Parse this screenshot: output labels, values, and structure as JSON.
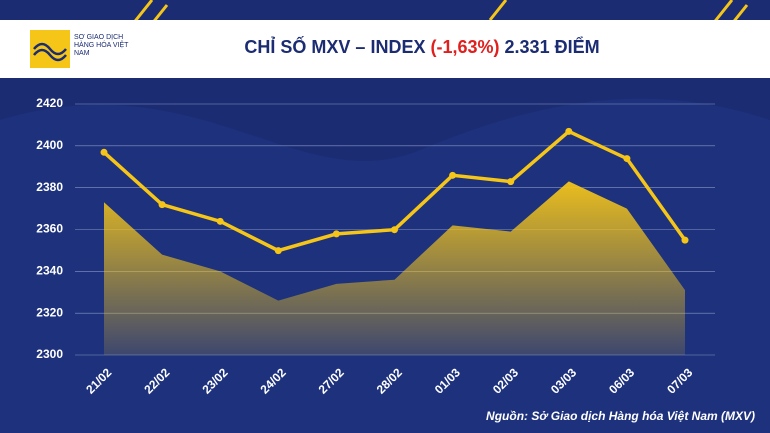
{
  "brand": "SỞ GIAO DỊCH HÀNG HÓA VIỆT NAM",
  "chart_data": {
    "type": "area",
    "title": "CHỈ SỐ MXV – INDEX",
    "change": "(-1,63%)",
    "last": "2.331 ĐIỂM",
    "source": "Nguồn: Sở Giao dịch Hàng hóa Việt Nam (MXV)",
    "categories": [
      "21/02",
      "22/02",
      "23/02",
      "24/02",
      "27/02",
      "28/02",
      "01/03",
      "02/03",
      "03/03",
      "06/03",
      "07/03"
    ],
    "values": [
      2373,
      2348,
      2340,
      2326,
      2334,
      2336,
      2362,
      2359,
      2383,
      2370,
      2331
    ],
    "color": "#f5c518",
    "ylim": [
      2300,
      2420
    ],
    "yticks": [
      2300,
      2320,
      2340,
      2360,
      2380,
      2400,
      2420
    ],
    "grid": true
  }
}
